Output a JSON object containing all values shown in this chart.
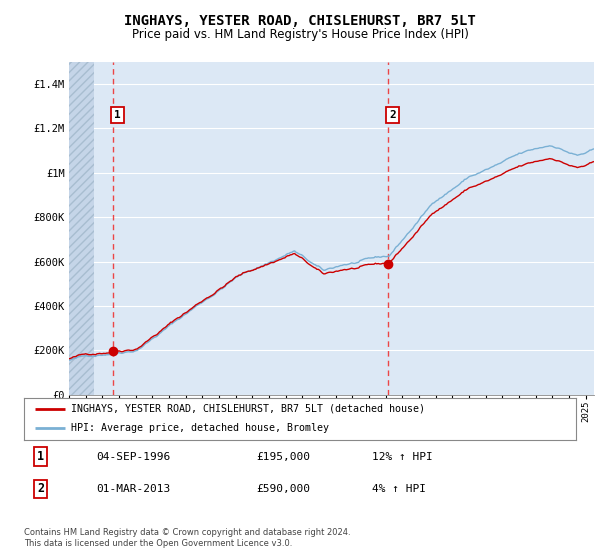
{
  "title": "INGHAYS, YESTER ROAD, CHISLEHURST, BR7 5LT",
  "subtitle": "Price paid vs. HM Land Registry's House Price Index (HPI)",
  "sale1_t": 1996.667,
  "sale1_price": 195000,
  "sale2_t": 2013.167,
  "sale2_price": 590000,
  "property_line_color": "#cc0000",
  "hpi_line_color": "#7ab0d4",
  "vline_color": "#ee3333",
  "marker_color": "#cc0000",
  "legend_property": "INGHAYS, YESTER ROAD, CHISLEHURST, BR7 5LT (detached house)",
  "legend_hpi": "HPI: Average price, detached house, Bromley",
  "footnote1": "Contains HM Land Registry data © Crown copyright and database right 2024.",
  "footnote2": "This data is licensed under the Open Government Licence v3.0.",
  "table_row1": [
    "1",
    "04-SEP-1996",
    "£195,000",
    "12% ↑ HPI"
  ],
  "table_row2": [
    "2",
    "01-MAR-2013",
    "£590,000",
    "4% ↑ HPI"
  ],
  "ylim_max": 1500000,
  "plot_bg_color": "#dce8f5",
  "hatch_bg_color": "#c5d5e8",
  "grid_color": "#ffffff"
}
